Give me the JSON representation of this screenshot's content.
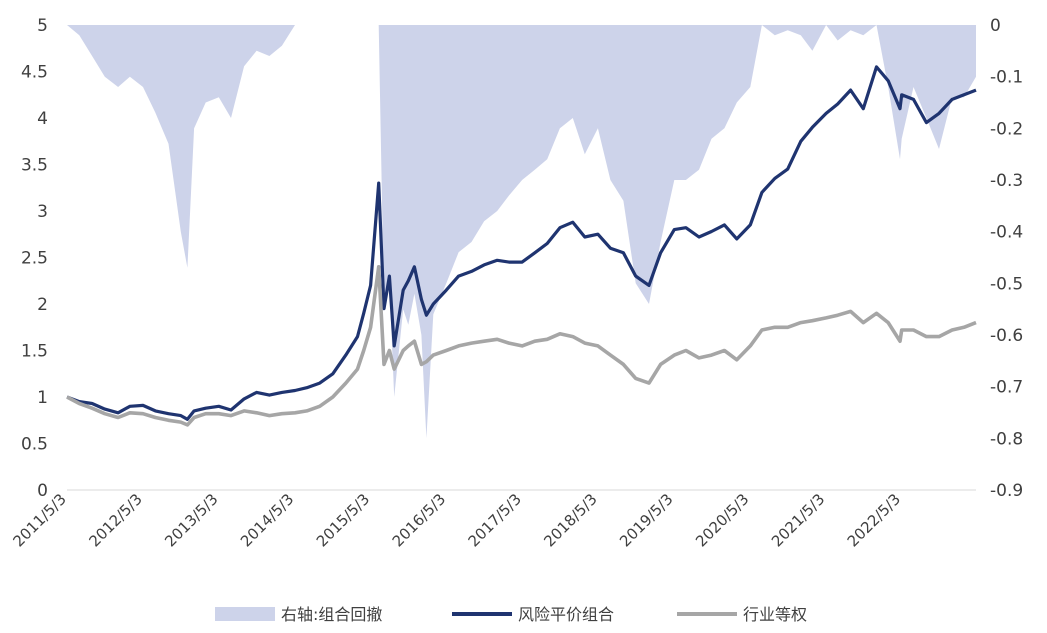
{
  "chart_data": {
    "type": "line",
    "title": "",
    "xlabel": "",
    "ylabel": "",
    "x_ticks": [
      "2011/5/3",
      "2012/5/3",
      "2013/5/3",
      "2014/5/3",
      "2015/5/3",
      "2016/5/3",
      "2017/5/3",
      "2018/5/3",
      "2019/5/3",
      "2020/5/3",
      "2021/5/3",
      "2022/5/3"
    ],
    "ylim_left": [
      0,
      5
    ],
    "yticks_left": [
      "0",
      "0.5",
      "1",
      "1.5",
      "2",
      "2.5",
      "3",
      "3.5",
      "4",
      "4.5",
      "5"
    ],
    "ylim_right": [
      -0.9,
      0
    ],
    "yticks_right": [
      "0",
      "-0.1",
      "-0.2",
      "-0.3",
      "-0.4",
      "-0.5",
      "-0.6",
      "-0.7",
      "-0.8",
      "-0.9"
    ],
    "legend_position": "bottom",
    "x": [
      "2011/5/3",
      "2011/7/1",
      "2011/9/1",
      "2011/11/1",
      "2012/1/4",
      "2012/3/1",
      "2012/5/3",
      "2012/7/2",
      "2012/9/3",
      "2012/11/1",
      "2012/12/3",
      "2013/1/4",
      "2013/3/1",
      "2013/5/3",
      "2013/7/1",
      "2013/9/2",
      "2013/11/1",
      "2014/1/2",
      "2014/3/3",
      "2014/5/5",
      "2014/7/1",
      "2014/9/1",
      "2014/11/3",
      "2015/1/5",
      "2015/3/2",
      "2015/4/1",
      "2015/5/4",
      "2015/6/12",
      "2015/7/8",
      "2015/8/3",
      "2015/8/26",
      "2015/10/8",
      "2015/11/2",
      "2015/12/1",
      "2016/1/4",
      "2016/1/28",
      "2016/3/1",
      "2016/5/3",
      "2016/7/1",
      "2016/9/1",
      "2016/11/1",
      "2017/1/3",
      "2017/3/1",
      "2017/5/3",
      "2017/7/3",
      "2017/9/1",
      "2017/11/1",
      "2018/1/2",
      "2018/3/1",
      "2018/5/3",
      "2018/7/2",
      "2018/9/3",
      "2018/11/1",
      "2019/1/4",
      "2019/3/1",
      "2019/5/6",
      "2019/7/1",
      "2019/9/2",
      "2019/11/1",
      "2020/1/2",
      "2020/3/2",
      "2020/5/6",
      "2020/7/1",
      "2020/9/1",
      "2020/11/2",
      "2021/1/4",
      "2021/3/1",
      "2021/5/6",
      "2021/7/1",
      "2021/9/1",
      "2021/11/1",
      "2022/1/4",
      "2022/3/1",
      "2022/4/27",
      "2022/5/5",
      "2022/7/1",
      "2022/9/1",
      "2022/11/1",
      "2023/1/3",
      "2023/3/1",
      "2023/4/28"
    ],
    "series": [
      {
        "name": "右轴:组合回撤",
        "kind": "area",
        "axis": "right",
        "color": "#cdd3ea",
        "values": [
          0,
          -0.02,
          -0.06,
          -0.1,
          -0.12,
          -0.1,
          -0.12,
          -0.17,
          -0.23,
          -0.4,
          -0.47,
          -0.2,
          -0.15,
          -0.14,
          -0.18,
          -0.08,
          -0.05,
          -0.06,
          -0.04,
          0,
          0,
          0,
          0,
          0,
          0,
          0,
          0,
          0,
          -0.55,
          -0.5,
          -0.72,
          -0.55,
          -0.58,
          -0.52,
          -0.6,
          -0.8,
          -0.56,
          -0.5,
          -0.44,
          -0.42,
          -0.38,
          -0.36,
          -0.33,
          -0.3,
          -0.28,
          -0.26,
          -0.2,
          -0.18,
          -0.25,
          -0.2,
          -0.3,
          -0.34,
          -0.5,
          -0.54,
          -0.42,
          -0.3,
          -0.3,
          -0.28,
          -0.22,
          -0.2,
          -0.15,
          -0.12,
          0,
          -0.02,
          -0.01,
          -0.02,
          -0.05,
          0,
          -0.03,
          -0.01,
          -0.02,
          0,
          -0.12,
          -0.26,
          -0.22,
          -0.12,
          -0.18,
          -0.24,
          -0.14,
          -0.14,
          -0.1
        ]
      },
      {
        "name": "风险平价组合",
        "kind": "line",
        "axis": "left",
        "color": "#1f3470",
        "values": [
          1,
          0.95,
          0.93,
          0.87,
          0.83,
          0.9,
          0.91,
          0.85,
          0.82,
          0.8,
          0.76,
          0.85,
          0.88,
          0.9,
          0.86,
          0.98,
          1.05,
          1.02,
          1.05,
          1.07,
          1.1,
          1.15,
          1.25,
          1.45,
          1.65,
          1.9,
          2.2,
          3.3,
          1.95,
          2.3,
          1.55,
          2.15,
          2.25,
          2.4,
          2.05,
          1.88,
          2.0,
          2.15,
          2.3,
          2.35,
          2.42,
          2.47,
          2.45,
          2.45,
          2.55,
          2.65,
          2.82,
          2.88,
          2.72,
          2.75,
          2.6,
          2.55,
          2.3,
          2.2,
          2.55,
          2.8,
          2.82,
          2.72,
          2.78,
          2.85,
          2.7,
          2.85,
          3.2,
          3.35,
          3.45,
          3.75,
          3.9,
          4.05,
          4.15,
          4.3,
          4.1,
          4.55,
          4.4,
          4.1,
          4.25,
          4.2,
          3.95,
          4.05,
          4.2,
          4.25,
          4.3
        ]
      },
      {
        "name": "行业等权",
        "kind": "line",
        "axis": "left",
        "color": "#a6a6a6",
        "values": [
          1,
          0.93,
          0.88,
          0.82,
          0.78,
          0.83,
          0.82,
          0.78,
          0.75,
          0.73,
          0.7,
          0.78,
          0.82,
          0.82,
          0.8,
          0.85,
          0.83,
          0.8,
          0.82,
          0.83,
          0.85,
          0.9,
          1.0,
          1.15,
          1.3,
          1.5,
          1.75,
          2.4,
          1.35,
          1.5,
          1.3,
          1.5,
          1.55,
          1.6,
          1.35,
          1.38,
          1.45,
          1.5,
          1.55,
          1.58,
          1.6,
          1.62,
          1.58,
          1.55,
          1.6,
          1.62,
          1.68,
          1.65,
          1.58,
          1.55,
          1.45,
          1.35,
          1.2,
          1.15,
          1.35,
          1.45,
          1.5,
          1.42,
          1.45,
          1.5,
          1.4,
          1.55,
          1.72,
          1.75,
          1.75,
          1.8,
          1.82,
          1.85,
          1.88,
          1.92,
          1.8,
          1.9,
          1.8,
          1.6,
          1.72,
          1.72,
          1.65,
          1.65,
          1.72,
          1.75,
          1.8
        ]
      }
    ]
  }
}
